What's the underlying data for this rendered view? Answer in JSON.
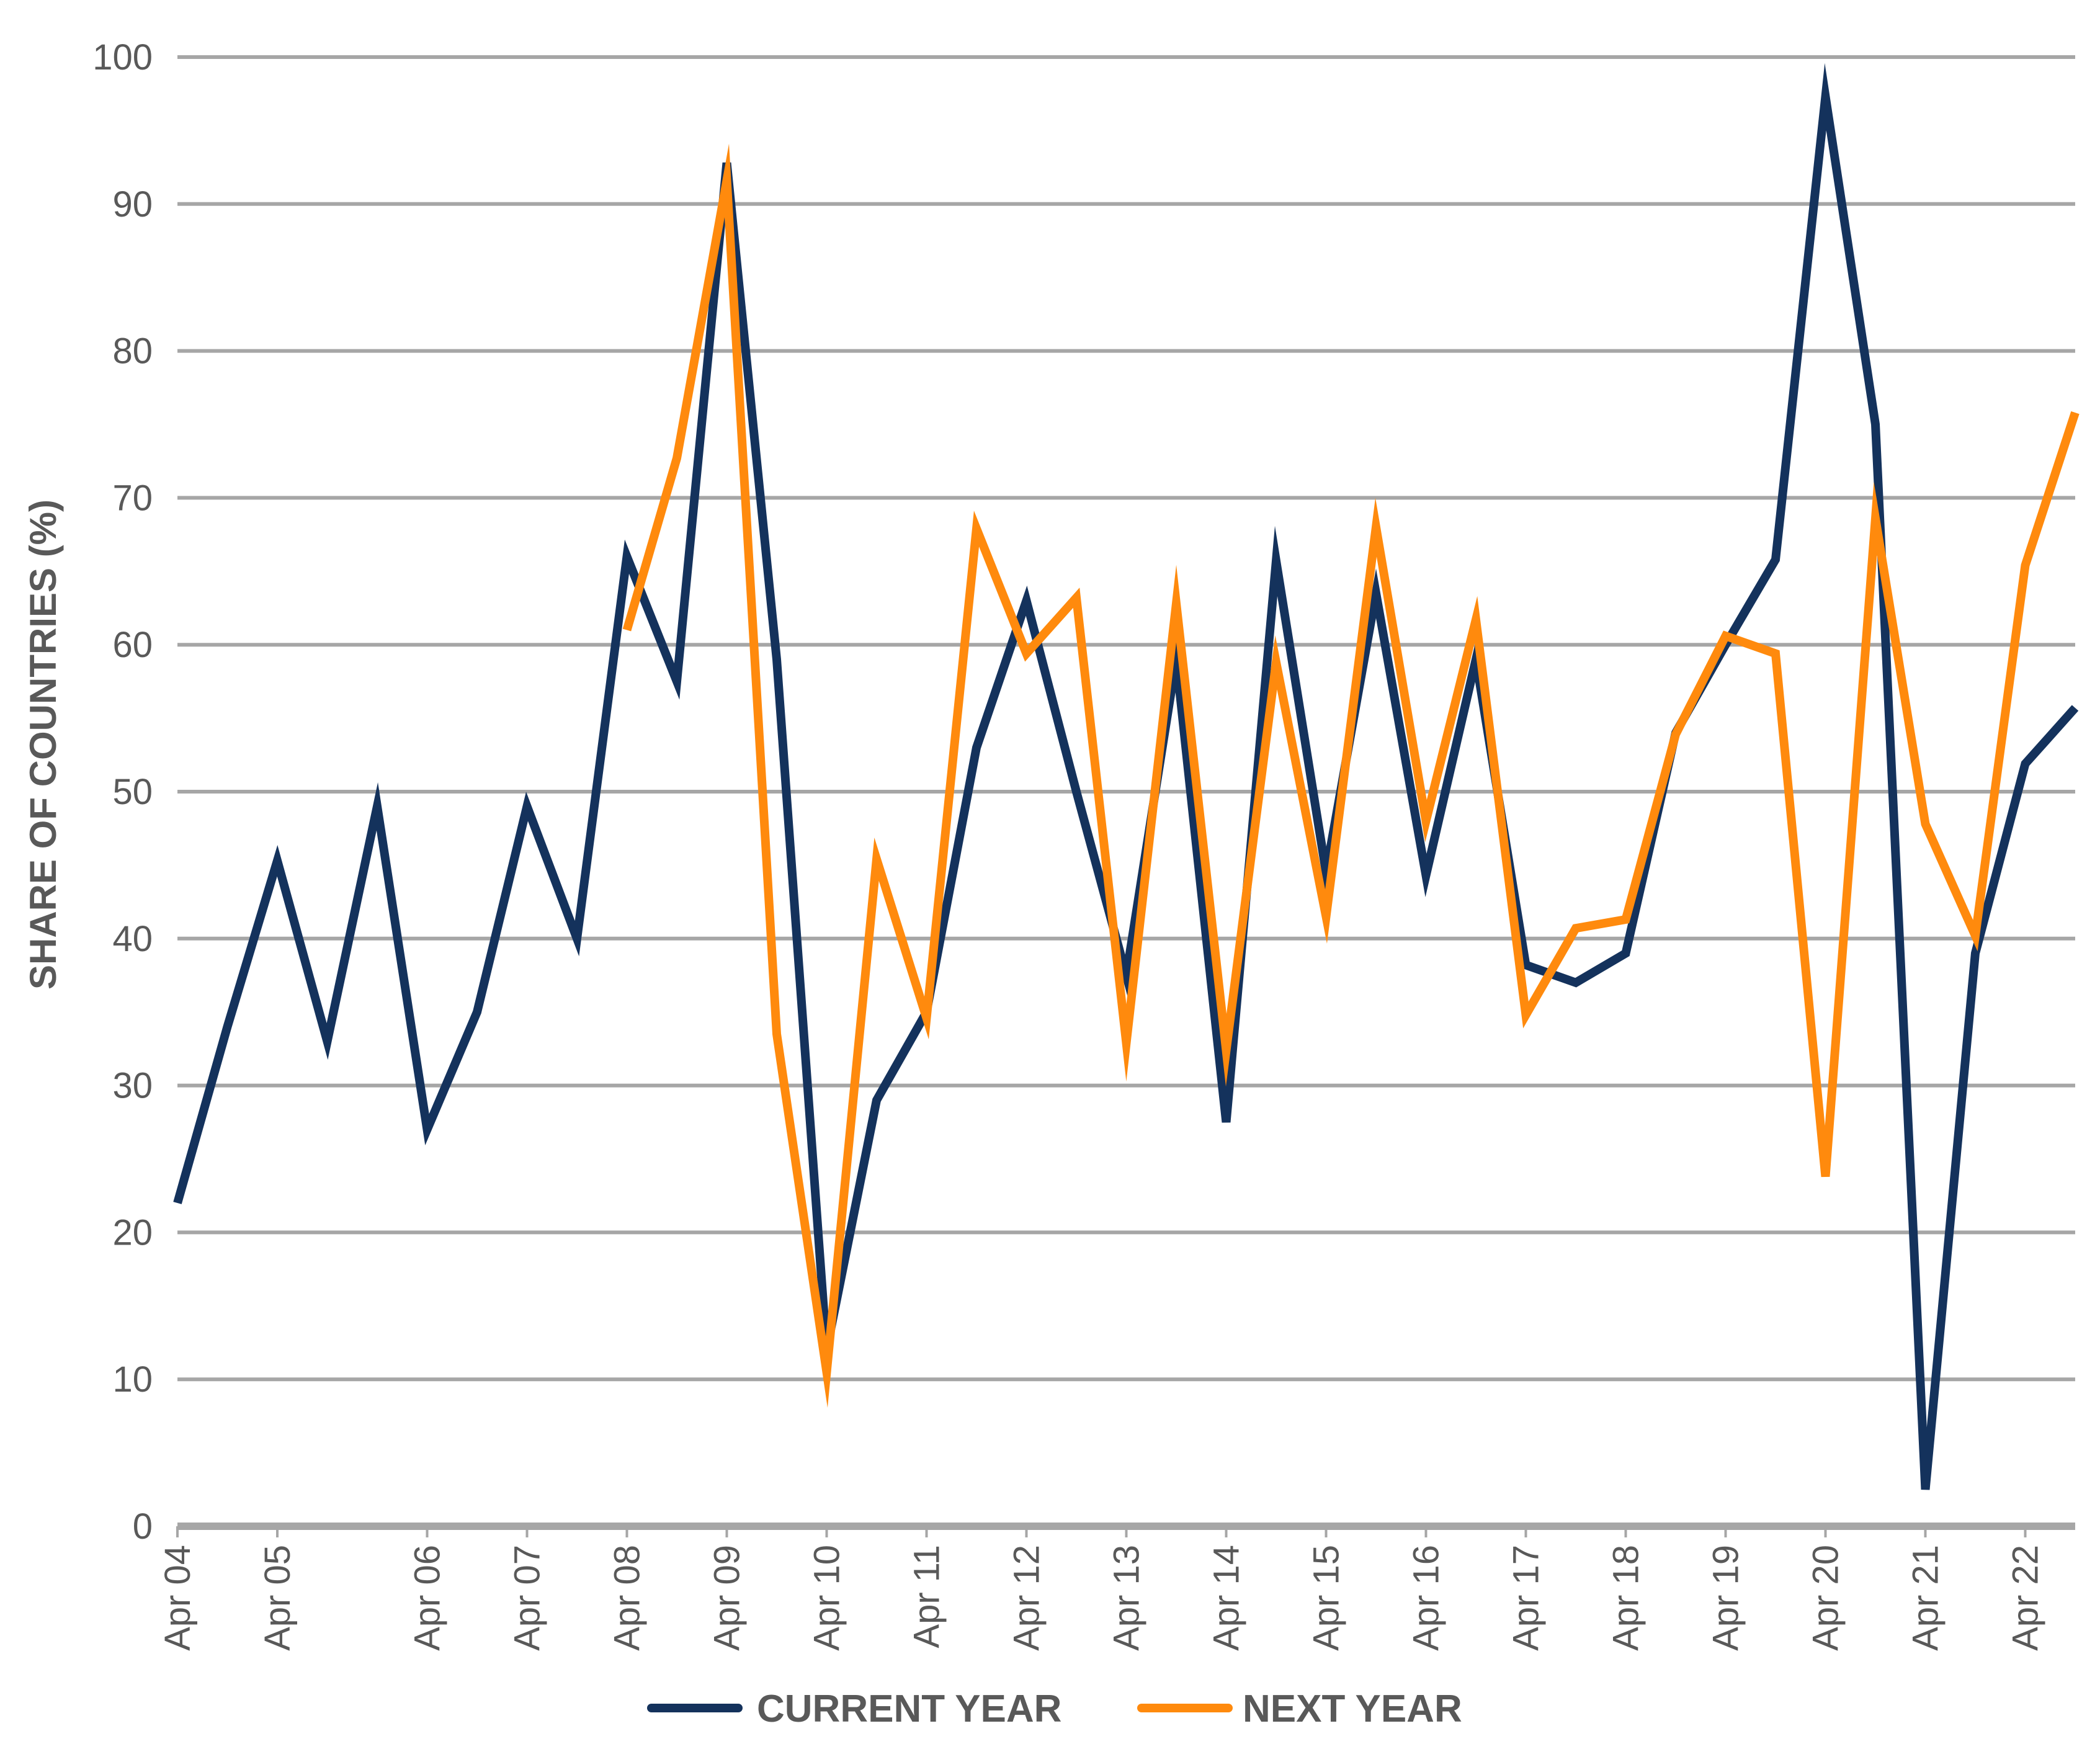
{
  "chart_data": {
    "type": "line",
    "ylabel": "SHARE OF COUNTRIES (%)",
    "xlabel": "",
    "ylim": [
      0,
      100
    ],
    "yticks": [
      0,
      10,
      20,
      30,
      40,
      50,
      60,
      70,
      80,
      90,
      100
    ],
    "grid": true,
    "legend_position": "bottom",
    "x": [
      "Apr 04",
      "Oct 04",
      "Apr 05",
      "Sep 05",
      "Oct 05",
      "Apr 06",
      "Oct 06",
      "Apr 07",
      "Oct 07",
      "Apr 08",
      "Oct 08",
      "Apr 09",
      "Oct 09",
      "Apr 10",
      "Oct 10",
      "Apr 11",
      "Oct 11",
      "Apr 12",
      "Oct 12",
      "Apr 13",
      "Oct 13",
      "Apr 14",
      "Oct 14",
      "Apr 15",
      "Oct 15",
      "Apr 16",
      "Oct 16",
      "Apr 17",
      "Oct 17",
      "Apr 18",
      "Oct 18",
      "Apr 19",
      "Oct 19",
      "Apr 20",
      "Oct 20",
      "Apr 21",
      "Oct 21",
      "Apr 22",
      "Oct 22"
    ],
    "x_tick_labels": [
      "Apr 04",
      "Apr 05",
      "Apr 06",
      "Apr 07",
      "Apr 08",
      "Apr 09",
      "Apr 10",
      "Apr 11",
      "Apr 12",
      "Apr 13",
      "Apr 14",
      "Apr 15",
      "Apr 16",
      "Apr 17",
      "Apr 18",
      "Apr 19",
      "Apr 20",
      "Apr 21",
      "Apr 22"
    ],
    "series": [
      {
        "name": "CURRENT YEAR",
        "color": "#14325c",
        "values": [
          22,
          34,
          45.3,
          33,
          49,
          27,
          35,
          49,
          40,
          66,
          57.5,
          92.8,
          59,
          12,
          29,
          35,
          53,
          63,
          50,
          37.5,
          59,
          27.5,
          65.7,
          44.5,
          63.5,
          44.3,
          59,
          38.2,
          37,
          39,
          54,
          60,
          65.8,
          97.3,
          75,
          2.5,
          39,
          51.9,
          55.7
        ]
      },
      {
        "name": "NEXT YEAR",
        "color": "#ff8a0d",
        "values": [
          null,
          null,
          null,
          null,
          null,
          null,
          null,
          null,
          null,
          61,
          72.7,
          91.6,
          33.5,
          10.5,
          45.4,
          34.6,
          67.9,
          59.4,
          63.2,
          32.9,
          62.8,
          32.4,
          58.8,
          41.5,
          68,
          48,
          61.7,
          34.8,
          40.7,
          41.3,
          53.9,
          60.6,
          59.4,
          23.8,
          68.6,
          47.8,
          40.2,
          65.4,
          75.8
        ]
      }
    ]
  }
}
